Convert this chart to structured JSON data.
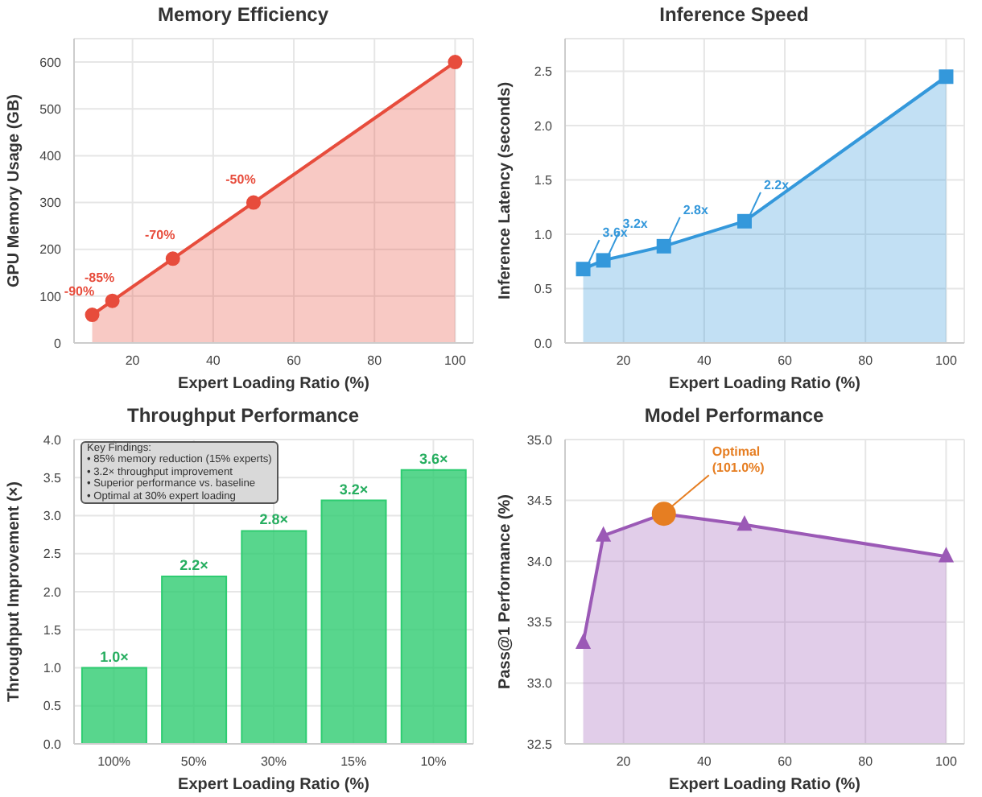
{
  "chart_data": [
    {
      "type": "area",
      "title": "Memory Efficiency",
      "xlabel": "Expert Loading Ratio (%)",
      "ylabel": "GPU Memory Usage (GB)",
      "x": [
        10,
        15,
        30,
        50,
        100
      ],
      "series": [
        {
          "color": "#e74c3c",
          "values": [
            60,
            90,
            180,
            300,
            600
          ]
        }
      ],
      "xlim": [
        5.5,
        104.5
      ],
      "ylim": [
        0,
        650
      ],
      "xticks": [
        20,
        40,
        60,
        80,
        100
      ],
      "yticks": [
        0,
        100,
        200,
        300,
        400,
        500,
        600
      ],
      "grid": true,
      "marker": "circle",
      "annotations": [
        {
          "text": "-90%",
          "x": 10,
          "y": 60
        },
        {
          "text": "-85%",
          "x": 15,
          "y": 90
        },
        {
          "text": "-70%",
          "x": 30,
          "y": 180
        },
        {
          "text": "-50%",
          "x": 50,
          "y": 300
        }
      ]
    },
    {
      "type": "area",
      "title": "Inference Speed",
      "xlabel": "Expert Loading Ratio (%)",
      "ylabel": "Inference Latency (seconds)",
      "x": [
        10,
        15,
        30,
        50,
        100
      ],
      "series": [
        {
          "color": "#3498db",
          "values": [
            0.68,
            0.76,
            0.89,
            1.12,
            2.45
          ]
        }
      ],
      "xlim": [
        5.5,
        104.5
      ],
      "ylim": [
        0,
        2.8
      ],
      "xticks": [
        20,
        40,
        60,
        80,
        100
      ],
      "yticks": [
        {
          "value": 0,
          "label": "0.0"
        },
        0.5,
        {
          "value": 1,
          "label": "1.0"
        },
        1.5,
        {
          "value": 2,
          "label": "2.0"
        },
        2.5
      ],
      "grid": true,
      "marker": "square",
      "annotations": [
        {
          "text": "3.6x",
          "x": 10,
          "y": 0.68
        },
        {
          "text": "3.2x",
          "x": 15,
          "y": 0.76
        },
        {
          "text": "2.8x",
          "x": 30,
          "y": 0.89
        },
        {
          "text": "2.2x",
          "x": 50,
          "y": 1.12
        }
      ]
    },
    {
      "type": "bar",
      "title": "Throughput Performance",
      "xlabel": "Expert Loading Ratio (%)",
      "ylabel": "Throughput Improvement (×)",
      "categories": [
        "100%",
        "50%",
        "30%",
        "15%",
        "10%"
      ],
      "series": [
        {
          "color": "#2ecc71",
          "values": [
            1.0,
            2.2,
            2.8,
            3.2,
            3.6
          ]
        }
      ],
      "value_labels": [
        "1.0×",
        "2.2×",
        "2.8×",
        "3.2×",
        "3.6×"
      ],
      "ylim": [
        0,
        4
      ],
      "yticks": [
        {
          "value": 0,
          "label": "0.0"
        },
        0.5,
        {
          "value": 1,
          "label": "1.0"
        },
        1.5,
        {
          "value": 2,
          "label": "2.0"
        },
        2.5,
        {
          "value": 3,
          "label": "3.0"
        },
        3.5,
        {
          "value": 4,
          "label": "4.0"
        }
      ],
      "grid": true,
      "annotations": [
        "Key Findings:\n• 85% memory reduction (15% experts)\n• 3.2× throughput improvement\n• Superior performance vs. baseline\n• Optimal at 30% expert loading"
      ]
    },
    {
      "type": "area",
      "title": "Model Performance",
      "xlabel": "Expert Loading Ratio (%)",
      "ylabel": "Pass@1 Performance (%)",
      "x": [
        10,
        15,
        30,
        50,
        100
      ],
      "series": [
        {
          "color": "#9b59b6",
          "values": [
            33.33,
            34.21,
            34.39,
            34.3,
            34.04
          ]
        },
        {
          "type": "scatter",
          "x": [
            30
          ],
          "color": "#e67e22",
          "values": [
            34.39
          ],
          "marker": "circle"
        }
      ],
      "xlim": [
        5.5,
        104.5
      ],
      "ylim": [
        32.5,
        35
      ],
      "xticks": [
        20,
        40,
        60,
        80,
        100
      ],
      "yticks": [
        32.5,
        {
          "value": 33,
          "label": "33.0"
        },
        33.5,
        {
          "value": 34,
          "label": "34.0"
        },
        34.5,
        {
          "value": 35,
          "label": "35.0"
        }
      ],
      "grid": true,
      "marker": "triangle",
      "annotations": [
        {
          "text": "Optimal\n(101.0%)",
          "x": 30,
          "y": 34.39
        }
      ]
    }
  ]
}
